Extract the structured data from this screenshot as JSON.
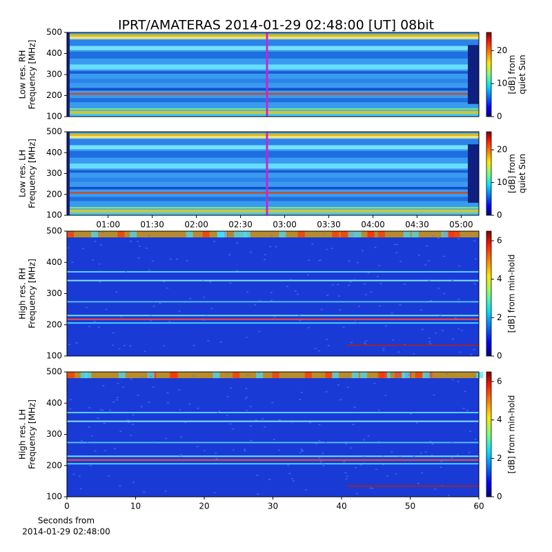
{
  "title": "IPRT/AMATERAS 2014-01-29 02:48:00 [UT]   08bit",
  "chart_data": [
    {
      "type": "heatmap",
      "ylabel": [
        "Low res. RH",
        "Frequency [MHz]"
      ],
      "ylim": [
        100,
        500
      ],
      "yticks": [
        100,
        200,
        300,
        400,
        500
      ],
      "xlim": [
        32,
        312
      ],
      "marker_x": 168,
      "marker_color": "#d020d0",
      "clim": [
        0,
        25.5
      ],
      "cticks": [
        0,
        10,
        20
      ],
      "colorbar_label": [
        "[dB] from",
        "quiet Sun"
      ],
      "style": "low"
    },
    {
      "type": "heatmap",
      "ylabel": [
        "Low res. LH",
        "Frequency [MHz]"
      ],
      "ylim": [
        100,
        500
      ],
      "yticks": [
        100,
        200,
        300,
        400,
        500
      ],
      "xlim": [
        32,
        312
      ],
      "xticks": [
        {
          "value": 60,
          "label": "01:00"
        },
        {
          "value": 90,
          "label": "01:30"
        },
        {
          "value": 120,
          "label": "02:00"
        },
        {
          "value": 150,
          "label": "02:30"
        },
        {
          "value": 180,
          "label": "03:00"
        },
        {
          "value": 210,
          "label": "03:30"
        },
        {
          "value": 240,
          "label": "04:00"
        },
        {
          "value": 270,
          "label": "04:30"
        },
        {
          "value": 300,
          "label": "05:00"
        }
      ],
      "marker_x": 168,
      "marker_color": "#d020d0",
      "clim": [
        0,
        25.5
      ],
      "cticks": [
        0,
        10,
        20
      ],
      "colorbar_label": [
        "[dB] from",
        "quiet Sun"
      ],
      "style": "low"
    },
    {
      "type": "heatmap",
      "ylabel": [
        "High res. RH",
        "Frequency [MHz]"
      ],
      "ylim": [
        100,
        500
      ],
      "yticks": [
        100,
        200,
        300,
        400,
        500
      ],
      "xlim": [
        0,
        60
      ],
      "clim": [
        0,
        6.5
      ],
      "cticks": [
        0,
        2,
        4,
        6
      ],
      "colorbar_label": [
        "[dB] from min-hold"
      ],
      "style": "high"
    },
    {
      "type": "heatmap",
      "ylabel": [
        "High res. LH",
        "Frequency [MHz]"
      ],
      "ylim": [
        100,
        500
      ],
      "yticks": [
        100,
        200,
        300,
        400,
        500
      ],
      "xlim": [
        0,
        60
      ],
      "xticks": [
        0,
        10,
        20,
        30,
        40,
        50,
        60
      ],
      "xlabel": [
        "Seconds from",
        "2014-01-29 02:48:00"
      ],
      "clim": [
        0,
        6.5
      ],
      "cticks": [
        0,
        2,
        4,
        6
      ],
      "colorbar_label": [
        "[dB] from min-hold"
      ],
      "style": "high"
    }
  ]
}
